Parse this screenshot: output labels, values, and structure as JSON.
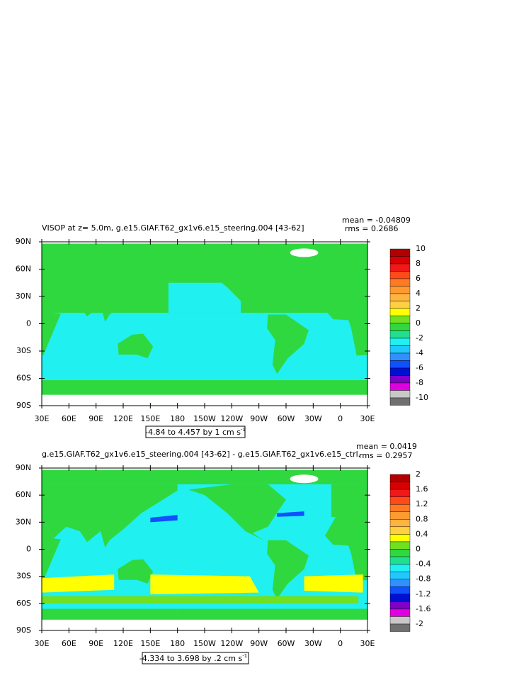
{
  "panels": [
    {
      "title": "VISOP at z=   5.0m, g.e15.GIAF.T62_gx1v6.e15_steering.004 [43-62]",
      "mean": "mean = -0.04809",
      "rms": "rms = 0.2686",
      "lat_labels": [
        "90N",
        "60N",
        "30N",
        "0",
        "30S",
        "60S",
        "90S"
      ],
      "lon_labels": [
        "30E",
        "60E",
        "90E",
        "120E",
        "150E",
        "180",
        "150W",
        "120W",
        "90W",
        "60W",
        "30W",
        "0",
        "30E"
      ],
      "colorbar_labels": [
        "10",
        "8",
        "6",
        "4",
        "2",
        "0",
        "-2",
        "-4",
        "-6",
        "-8",
        "-10"
      ],
      "range_label": {
        "text": "-4.84 to 4.457 by 1 cm s",
        "exponent": "-1"
      }
    },
    {
      "title": "g.e15.GIAF.T62_gx1v6.e15_steering.004 [43-62] - g.e15.GIAF.T62_gx1v6.e15_ctrl.",
      "mean": "mean = 0.0419",
      "rms": "rms = 0.2957",
      "lat_labels": [
        "90N",
        "60N",
        "30N",
        "0",
        "30S",
        "60S",
        "90S"
      ],
      "lon_labels": [
        "30E",
        "60E",
        "90E",
        "120E",
        "150E",
        "180",
        "150W",
        "120W",
        "90W",
        "60W",
        "30W",
        "0",
        "30E"
      ],
      "colorbar_labels": [
        "2",
        "1.6",
        "1.2",
        "0.8",
        "0.4",
        "0",
        "-0.4",
        "-0.8",
        "-1.2",
        "-1.6",
        "-2"
      ],
      "range_label": {
        "text": "-4.334 to 3.698 by .2 cm s",
        "exponent": "-1"
      }
    }
  ],
  "colorbar_colors": [
    "#b00000",
    "#d80000",
    "#f01818",
    "#ff4a1a",
    "#ff7a20",
    "#ff9a30",
    "#ffb440",
    "#ffd040",
    "#ffff00",
    "#70e020",
    "#30d840",
    "#20e090",
    "#20f0f0",
    "#20c8ff",
    "#3090ff",
    "#1050ff",
    "#0010d0",
    "#8000c8",
    "#e000e0",
    "#c8c8c8"
  ]
}
